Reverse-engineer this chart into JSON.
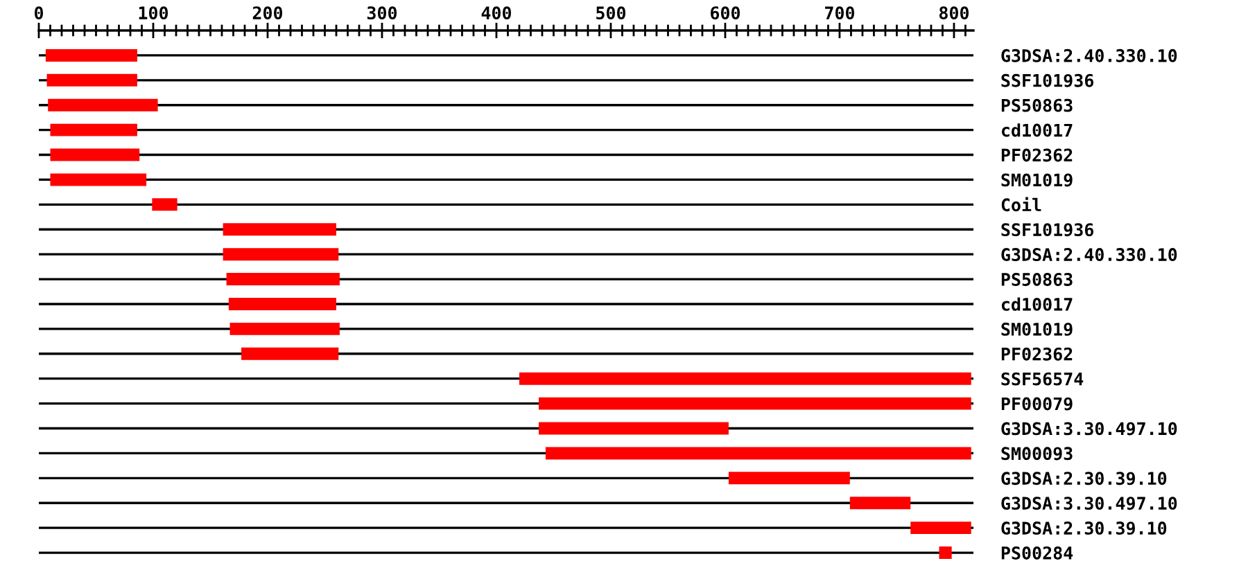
{
  "chart_data": {
    "type": "bar",
    "orientation": "horizontal",
    "categories": [
      "G3DSA:2.40.330.10",
      "SSF101936",
      "PS50863",
      "cd10017",
      "PF02362",
      "SM01019",
      "Coil",
      "SSF101936",
      "G3DSA:2.40.330.10",
      "PS50863",
      "cd10017",
      "SM01019",
      "PF02362",
      "SSF56574",
      "PF00079",
      "G3DSA:3.30.497.10",
      "SM00093",
      "G3DSA:2.30.39.10",
      "G3DSA:3.30.497.10",
      "G3DSA:2.30.39.10",
      "PS00284"
    ],
    "base": [
      6,
      7,
      8,
      10,
      10,
      10,
      99,
      161,
      161,
      164,
      166,
      167,
      177,
      420,
      437,
      437,
      443,
      603,
      709,
      762,
      787
    ],
    "values": [
      80,
      79,
      96,
      76,
      78,
      84,
      22,
      99,
      101,
      99,
      94,
      96,
      85,
      395,
      378,
      166,
      372,
      106,
      53,
      53,
      11
    ],
    "color": "#ff0000",
    "xlim": [
      0,
      817
    ],
    "xticks": [
      0,
      {
        "value": 10,
        "label": null
      },
      {
        "value": 20,
        "label": null
      },
      {
        "value": 30,
        "label": null
      },
      {
        "value": 40,
        "label": null
      },
      {
        "value": 50,
        "label": null
      },
      {
        "value": 60,
        "label": null
      },
      {
        "value": 70,
        "label": null
      },
      {
        "value": 80,
        "label": null
      },
      {
        "value": 90,
        "label": null
      },
      100,
      {
        "value": 110,
        "label": null
      },
      {
        "value": 120,
        "label": null
      },
      {
        "value": 130,
        "label": null
      },
      {
        "value": 140,
        "label": null
      },
      {
        "value": 150,
        "label": null
      },
      {
        "value": 160,
        "label": null
      },
      {
        "value": 170,
        "label": null
      },
      {
        "value": 180,
        "label": null
      },
      {
        "value": 190,
        "label": null
      },
      200,
      {
        "value": 210,
        "label": null
      },
      {
        "value": 220,
        "label": null
      },
      {
        "value": 230,
        "label": null
      },
      {
        "value": 240,
        "label": null
      },
      {
        "value": 250,
        "label": null
      },
      {
        "value": 260,
        "label": null
      },
      {
        "value": 270,
        "label": null
      },
      {
        "value": 280,
        "label": null
      },
      {
        "value": 290,
        "label": null
      },
      300,
      {
        "value": 310,
        "label": null
      },
      {
        "value": 320,
        "label": null
      },
      {
        "value": 330,
        "label": null
      },
      {
        "value": 340,
        "label": null
      },
      {
        "value": 350,
        "label": null
      },
      {
        "value": 360,
        "label": null
      },
      {
        "value": 370,
        "label": null
      },
      {
        "value": 380,
        "label": null
      },
      {
        "value": 390,
        "label": null
      },
      400,
      {
        "value": 410,
        "label": null
      },
      {
        "value": 420,
        "label": null
      },
      {
        "value": 430,
        "label": null
      },
      {
        "value": 440,
        "label": null
      },
      {
        "value": 450,
        "label": null
      },
      {
        "value": 460,
        "label": null
      },
      {
        "value": 470,
        "label": null
      },
      {
        "value": 480,
        "label": null
      },
      {
        "value": 490,
        "label": null
      },
      500,
      {
        "value": 510,
        "label": null
      },
      {
        "value": 520,
        "label": null
      },
      {
        "value": 530,
        "label": null
      },
      {
        "value": 540,
        "label": null
      },
      {
        "value": 550,
        "label": null
      },
      {
        "value": 560,
        "label": null
      },
      {
        "value": 570,
        "label": null
      },
      {
        "value": 580,
        "label": null
      },
      {
        "value": 590,
        "label": null
      },
      600,
      {
        "value": 610,
        "label": null
      },
      {
        "value": 620,
        "label": null
      },
      {
        "value": 630,
        "label": null
      },
      {
        "value": 640,
        "label": null
      },
      {
        "value": 650,
        "label": null
      },
      {
        "value": 660,
        "label": null
      },
      {
        "value": 670,
        "label": null
      },
      {
        "value": 680,
        "label": null
      },
      {
        "value": 690,
        "label": null
      },
      700,
      {
        "value": 710,
        "label": null
      },
      {
        "value": 720,
        "label": null
      },
      {
        "value": 730,
        "label": null
      },
      {
        "value": 740,
        "label": null
      },
      {
        "value": 750,
        "label": null
      },
      {
        "value": 760,
        "label": null
      },
      {
        "value": 770,
        "label": null
      },
      {
        "value": 780,
        "label": null
      },
      {
        "value": 790,
        "label": null
      },
      800,
      {
        "value": 810,
        "label": null
      }
    ],
    "grid": "y"
  }
}
